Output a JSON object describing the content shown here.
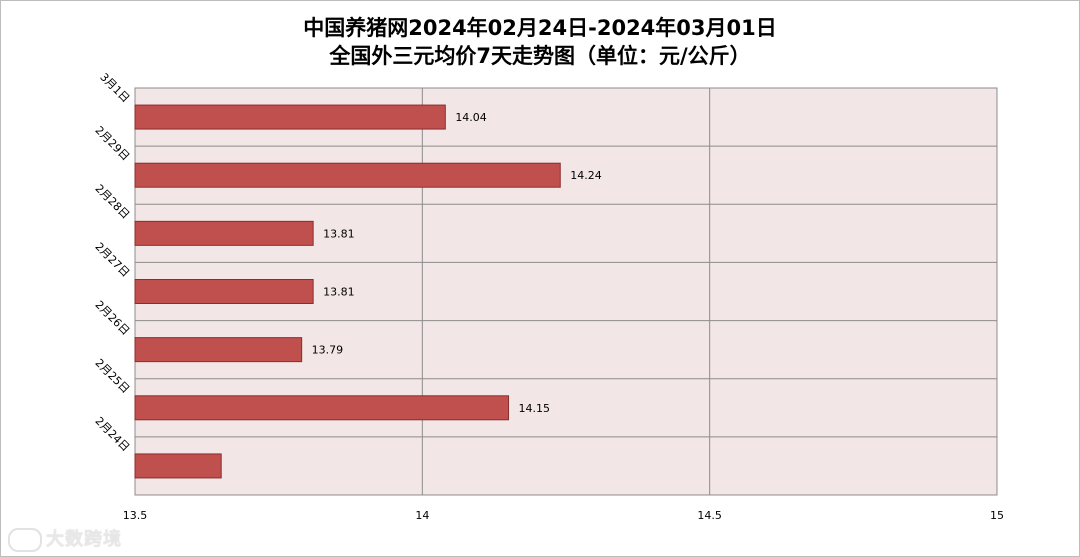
{
  "chart_data": {
    "type": "bar",
    "orientation": "horizontal",
    "title": [
      "中国养猪网2024年02月24日-2024年03月01日",
      "全国外三元均价7天走势图（单位：元/公斤）"
    ],
    "categories": [
      "3月1日",
      "2月29日",
      "2月28日",
      "2月27日",
      "2月26日",
      "2月25日",
      "2月24日"
    ],
    "values": [
      14.04,
      14.24,
      13.81,
      13.81,
      13.79,
      14.15,
      13.65
    ],
    "data_labels": [
      "14.04",
      "14.24",
      "13.81",
      "13.81",
      "13.79",
      "14.15",
      ""
    ],
    "xlim": [
      13.5,
      15
    ],
    "xticks": [
      "13.5",
      "14",
      "14.5",
      "15"
    ],
    "xlabel": "",
    "ylabel": "",
    "grid": true,
    "legend": "none",
    "colors": {
      "bar": "#c0504d",
      "bar_border": "#8c2d2b",
      "plot_bg": "#f2e6e6",
      "grid": "#8c8c8c"
    }
  },
  "watermark": {
    "text": "大数跨境"
  }
}
